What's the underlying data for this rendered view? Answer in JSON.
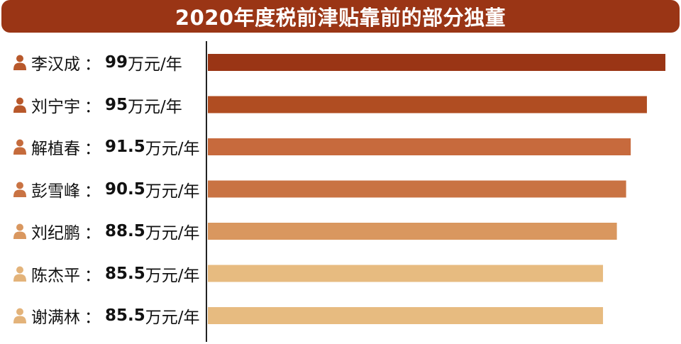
{
  "title": "2020年度税前津贴靠前的部分独董",
  "colors": {
    "title_bg": "#9a3515",
    "axis": "#222222",
    "bars": [
      "#9a3515",
      "#b04d22",
      "#c76a3d",
      "#c97343",
      "#d9975f",
      "#e7bb80",
      "#e7bb80"
    ],
    "icons": [
      "#b8582b",
      "#b8582b",
      "#c56b3c",
      "#c97343",
      "#d9975f",
      "#e3b37a",
      "#e3b37a"
    ]
  },
  "chart_data": {
    "type": "bar",
    "orientation": "horizontal",
    "title": "2020年度税前津贴靠前的部分独董",
    "categories": [
      "李汉成",
      "刘宁宇",
      "解植春",
      "彭雪峰",
      "刘纪鹏",
      "陈杰平",
      "谢满林"
    ],
    "values": [
      99,
      95,
      91.5,
      90.5,
      88.5,
      85.5,
      85.5
    ],
    "value_labels": [
      "99",
      "95",
      "91.5",
      "90.5",
      "88.5",
      "85.5",
      "85.5"
    ],
    "unit": "万元/年",
    "separator": "：",
    "grid": false,
    "legend": "none"
  }
}
